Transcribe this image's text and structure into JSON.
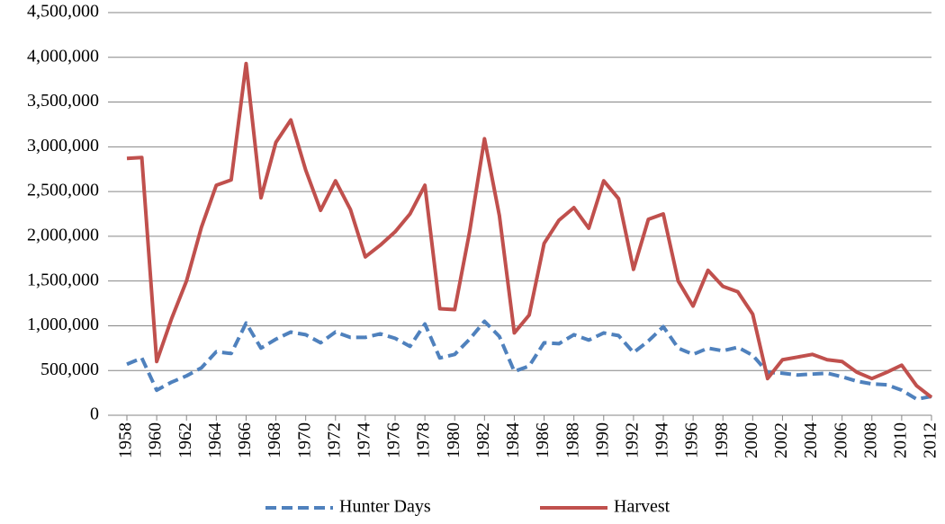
{
  "chart_data": {
    "type": "line",
    "x": [
      1958,
      1959,
      1960,
      1961,
      1962,
      1963,
      1964,
      1965,
      1966,
      1967,
      1968,
      1969,
      1970,
      1971,
      1972,
      1973,
      1974,
      1975,
      1976,
      1977,
      1978,
      1979,
      1980,
      1981,
      1982,
      1983,
      1984,
      1985,
      1986,
      1987,
      1988,
      1989,
      1990,
      1991,
      1992,
      1993,
      1994,
      1995,
      1996,
      1997,
      1998,
      1999,
      2000,
      2001,
      2002,
      2003,
      2004,
      2005,
      2006,
      2007,
      2008,
      2009,
      2010,
      2011,
      2012
    ],
    "xlim": [
      1958,
      2012
    ],
    "xticks": [
      1958,
      1960,
      1962,
      1964,
      1966,
      1968,
      1970,
      1972,
      1974,
      1976,
      1978,
      1980,
      1982,
      1984,
      1986,
      1988,
      1990,
      1992,
      1994,
      1996,
      1998,
      2000,
      2002,
      2004,
      2006,
      2008,
      2010,
      2012
    ],
    "ylim": [
      0,
      4500000
    ],
    "yticks": [
      0,
      {
        "value": 500000,
        "label": "500,000"
      },
      {
        "value": 1000000,
        "label": "1,000,000"
      },
      {
        "value": 1500000,
        "label": "1,500,000"
      },
      {
        "value": 2000000,
        "label": "2,000,000"
      },
      {
        "value": 2500000,
        "label": "2,500,000"
      },
      {
        "value": 3000000,
        "label": "3,000,000"
      },
      {
        "value": 3500000,
        "label": "3,500,000"
      },
      {
        "value": 4000000,
        "label": "4,000,000"
      },
      {
        "value": 4500000,
        "label": "4,500,000"
      }
    ],
    "grid": true,
    "legend": "bottom",
    "series": [
      {
        "name": "Hunter Days",
        "color": "#4f81bd",
        "dashed": true,
        "values": [
          570000,
          640000,
          280000,
          370000,
          440000,
          530000,
          710000,
          690000,
          1030000,
          750000,
          850000,
          930000,
          900000,
          810000,
          930000,
          870000,
          870000,
          910000,
          860000,
          770000,
          1020000,
          640000,
          680000,
          850000,
          1050000,
          880000,
          490000,
          550000,
          810000,
          800000,
          900000,
          840000,
          920000,
          890000,
          700000,
          830000,
          990000,
          750000,
          680000,
          750000,
          720000,
          760000,
          670000,
          480000,
          470000,
          450000,
          460000,
          470000,
          430000,
          380000,
          350000,
          340000,
          280000,
          180000,
          210000
        ]
      },
      {
        "name": "Harvest",
        "color": "#c0504d",
        "dashed": false,
        "values": [
          2870000,
          2880000,
          600000,
          1080000,
          1500000,
          2100000,
          2570000,
          2630000,
          3930000,
          2430000,
          3050000,
          3300000,
          2740000,
          2290000,
          2620000,
          2300000,
          1770000,
          1900000,
          2050000,
          2250000,
          2570000,
          1190000,
          1180000,
          2050000,
          3090000,
          2230000,
          920000,
          1120000,
          1920000,
          2180000,
          2320000,
          2090000,
          2620000,
          2420000,
          1630000,
          2190000,
          2250000,
          1500000,
          1220000,
          1620000,
          1440000,
          1380000,
          1130000,
          410000,
          620000,
          650000,
          680000,
          620000,
          600000,
          480000,
          410000,
          480000,
          560000,
          330000,
          200000
        ]
      }
    ]
  }
}
